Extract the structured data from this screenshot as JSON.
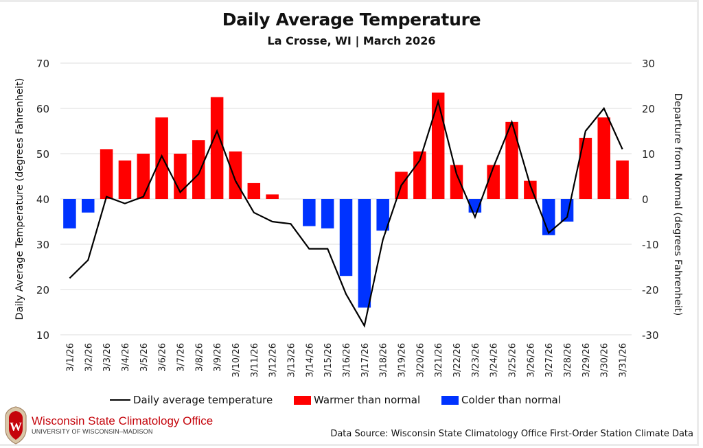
{
  "chart_data": {
    "type": "bar",
    "title": "Daily Average Temperature",
    "subtitle": "La Crosse, WI | March 2026",
    "categories": [
      "3/1/26",
      "3/2/26",
      "3/3/26",
      "3/4/26",
      "3/5/26",
      "3/6/26",
      "3/7/26",
      "3/8/26",
      "3/9/26",
      "3/10/26",
      "3/11/26",
      "3/12/26",
      "3/13/26",
      "3/14/26",
      "3/15/26",
      "3/16/26",
      "3/17/26",
      "3/18/26",
      "3/19/26",
      "3/20/26",
      "3/21/26",
      "3/22/26",
      "3/23/26",
      "3/24/26",
      "3/25/26",
      "3/26/26",
      "3/27/26",
      "3/28/26",
      "3/29/26",
      "3/30/26",
      "3/31/26"
    ],
    "series": [
      {
        "name": "Daily average temperature",
        "type": "line",
        "axis": "left",
        "color": "#000000",
        "values": [
          22.5,
          26.5,
          40.5,
          39,
          40.5,
          49.5,
          41.5,
          45.5,
          55,
          44,
          37,
          35,
          34.5,
          29,
          29,
          19,
          12,
          31,
          43,
          48.5,
          61.5,
          45.5,
          36,
          47,
          57,
          43,
          32.5,
          36,
          55,
          60,
          51
        ]
      },
      {
        "name": "Departure from normal",
        "type": "bar",
        "axis": "right",
        "values": [
          -6.5,
          -3,
          11,
          8.5,
          10,
          18,
          10,
          13,
          22.5,
          10.5,
          3.5,
          1,
          0,
          -6,
          -6.5,
          -17,
          -24,
          -7,
          6,
          10.5,
          23.5,
          7.5,
          -3,
          7.5,
          17,
          4,
          -8,
          -5,
          13.5,
          18,
          8.5
        ]
      }
    ],
    "ylabel": "Daily Average Temperature (degrees Fahrenheit)",
    "ylabel_right": "Departure from Normal (degrees Fahrenheit)",
    "xlabel": "",
    "ylim": [
      10,
      70
    ],
    "ylim_right": [
      -30,
      30
    ],
    "yticks": [
      "70",
      "60",
      "50",
      "40",
      "30",
      "20",
      "10"
    ],
    "yticks_right": [
      "30",
      "20",
      "10",
      "0",
      "-10",
      "-20",
      "-30"
    ],
    "grid": true,
    "legend_position": "bottom",
    "colors": {
      "warmer": "#ff0000",
      "colder": "#0033ff",
      "line": "#000000",
      "grid": "#e3e3e3"
    }
  },
  "legend": {
    "line_label": "Daily average temperature",
    "warm_label": "Warmer than normal",
    "cold_label": "Colder than normal"
  },
  "logo": {
    "name": "Wisconsin State Climatology Office",
    "subname": "UNIVERSITY OF WISCONSIN–MADISON",
    "crest_letter": "W"
  },
  "source": "Data Source: Wisconsin State Climatology Office First-Order Station Climate Data"
}
